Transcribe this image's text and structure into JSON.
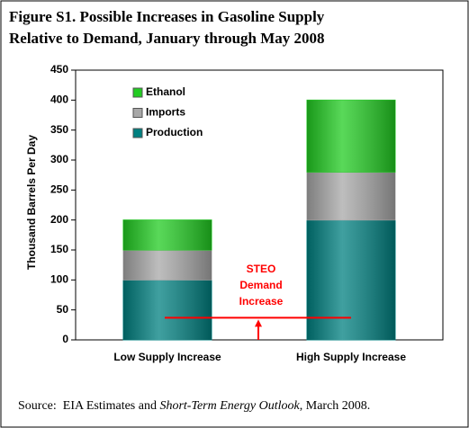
{
  "chart_data": {
    "type": "bar",
    "stacked": true,
    "title": [
      "Figure S1. Possible Increases in Gasoline Supply",
      "Relative to Demand, January through May 2008"
    ],
    "ylabel": "Thousand Barrels Per Day",
    "categories": [
      "Low Supply Increase",
      "High Supply Increase"
    ],
    "series": [
      {
        "name": "Production",
        "color": "#008080",
        "values": [
          100,
          200
        ]
      },
      {
        "name": "Imports",
        "color": "#a8a8a8",
        "values": [
          50,
          80
        ]
      },
      {
        "name": "Ethanol",
        "color": "#22cc22",
        "values": [
          50,
          120
        ]
      }
    ],
    "ylim": [
      0,
      450
    ],
    "yticks": [
      0,
      50,
      100,
      150,
      200,
      250,
      300,
      350,
      400,
      450
    ],
    "grid": false,
    "reference_line": {
      "label": [
        "STEO",
        "Demand",
        "Increase"
      ],
      "value": 37,
      "color": "#ff0000"
    }
  },
  "source": {
    "prefix": "Source:  EIA Estimates and ",
    "italic": "Short-Term Energy Outlook",
    "suffix": ", March 2008."
  }
}
